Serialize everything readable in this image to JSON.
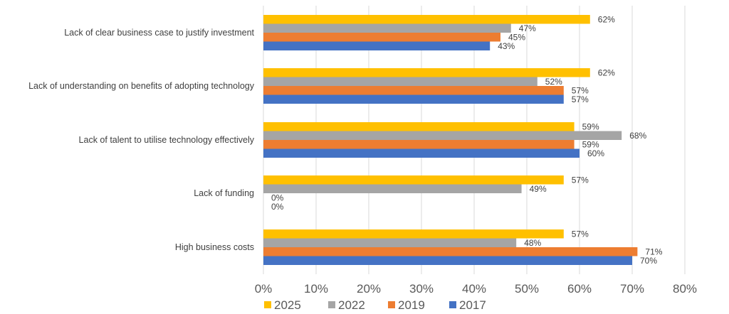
{
  "chart_data": {
    "type": "bar",
    "orientation": "horizontal",
    "categories": [
      "Lack of clear business case to justify investment",
      "Lack of understanding on benefits of adopting technology",
      "Lack of talent to utilise technology effectively",
      "Lack of funding",
      "High business costs"
    ],
    "series": [
      {
        "name": "2025",
        "color": "#FFC000",
        "values": [
          62,
          62,
          59,
          57,
          57
        ]
      },
      {
        "name": "2022",
        "color": "#A5A5A5",
        "values": [
          47,
          52,
          68,
          49,
          48
        ]
      },
      {
        "name": "2019",
        "color": "#ED7D31",
        "values": [
          45,
          57,
          59,
          0,
          71
        ]
      },
      {
        "name": "2017",
        "color": "#4472C4",
        "values": [
          43,
          57,
          60,
          0,
          70
        ]
      }
    ],
    "xlim": [
      0,
      80
    ],
    "xticks": [
      "0%",
      "10%",
      "20%",
      "30%",
      "40%",
      "50%",
      "60%",
      "70%",
      "80%"
    ],
    "value_suffix": "%",
    "grid": true,
    "legend_position": "bottom",
    "title": "",
    "xlabel": "",
    "ylabel": ""
  }
}
